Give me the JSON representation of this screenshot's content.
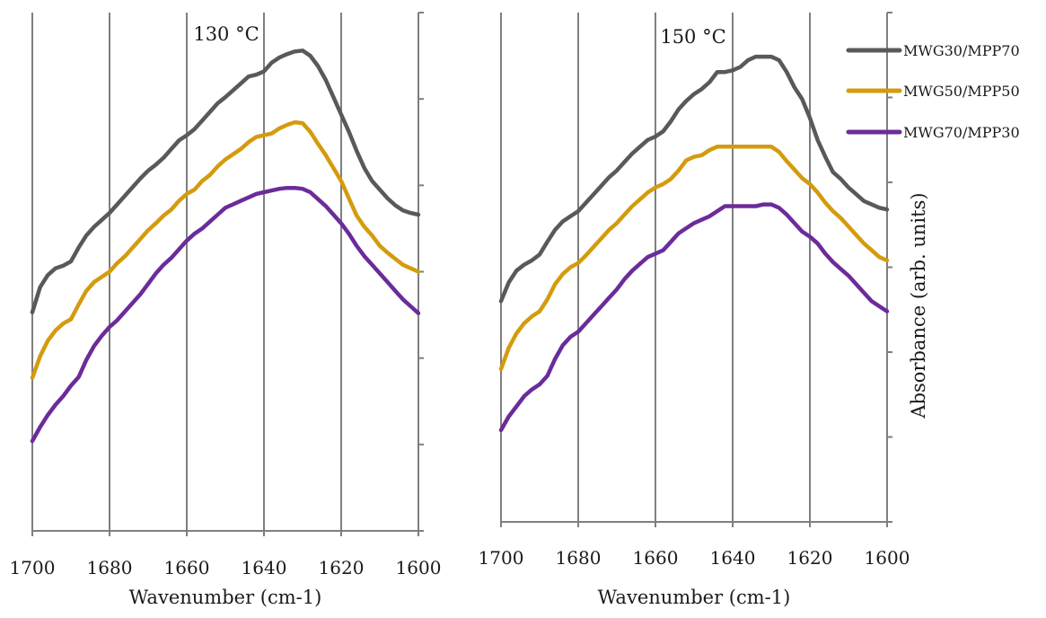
{
  "chart_data": [
    {
      "type": "line",
      "title": "130 °C",
      "xlabel": "Wavenumber (cm-1)",
      "ylabel": "",
      "x_reversed": true,
      "xlim": [
        1700,
        1600
      ],
      "xticks": [
        "1700",
        "1680",
        "1660",
        "1640",
        "1620",
        "1600"
      ],
      "ylim": [
        0,
        6
      ],
      "y_tick_labels": false,
      "grid": "vertical",
      "x": [
        1700,
        1698,
        1696,
        1694,
        1692,
        1690,
        1688,
        1686,
        1684,
        1682,
        1680,
        1678,
        1676,
        1674,
        1672,
        1670,
        1668,
        1666,
        1664,
        1662,
        1660,
        1658,
        1656,
        1654,
        1652,
        1650,
        1648,
        1646,
        1644,
        1642,
        1640,
        1638,
        1636,
        1634,
        1632,
        1630,
        1628,
        1626,
        1624,
        1622,
        1620,
        1618,
        1616,
        1614,
        1612,
        1610,
        1608,
        1606,
        1604,
        1602,
        1600
      ],
      "series": [
        {
          "name": "MWG30/MPP70",
          "color": "#595959",
          "values": [
            2.53,
            2.82,
            2.96,
            3.04,
            3.07,
            3.12,
            3.28,
            3.42,
            3.52,
            3.6,
            3.68,
            3.78,
            3.88,
            3.98,
            4.08,
            4.17,
            4.24,
            4.32,
            4.42,
            4.52,
            4.58,
            4.65,
            4.75,
            4.85,
            4.95,
            5.02,
            5.1,
            5.18,
            5.26,
            5.28,
            5.32,
            5.42,
            5.48,
            5.52,
            5.55,
            5.56,
            5.5,
            5.38,
            5.22,
            5.02,
            4.82,
            4.62,
            4.4,
            4.2,
            4.05,
            3.95,
            3.85,
            3.77,
            3.71,
            3.68,
            3.66
          ]
        },
        {
          "name": "MWG50/MPP50",
          "color": "#D49B0E",
          "values": [
            1.77,
            2.02,
            2.2,
            2.32,
            2.4,
            2.45,
            2.62,
            2.78,
            2.88,
            2.94,
            3.0,
            3.1,
            3.18,
            3.28,
            3.38,
            3.48,
            3.56,
            3.65,
            3.72,
            3.82,
            3.9,
            3.95,
            4.05,
            4.12,
            4.22,
            4.3,
            4.36,
            4.42,
            4.5,
            4.56,
            4.58,
            4.6,
            4.66,
            4.7,
            4.73,
            4.72,
            4.62,
            4.48,
            4.35,
            4.2,
            4.05,
            3.85,
            3.65,
            3.52,
            3.42,
            3.3,
            3.22,
            3.15,
            3.08,
            3.04,
            3.0
          ]
        },
        {
          "name": "MWG70/MPP30",
          "color": "#6B2C9A",
          "values": [
            1.04,
            1.2,
            1.34,
            1.46,
            1.56,
            1.68,
            1.78,
            1.98,
            2.14,
            2.26,
            2.36,
            2.44,
            2.54,
            2.64,
            2.74,
            2.86,
            2.98,
            3.08,
            3.16,
            3.26,
            3.36,
            3.44,
            3.5,
            3.58,
            3.66,
            3.74,
            3.78,
            3.82,
            3.86,
            3.9,
            3.92,
            3.94,
            3.96,
            3.97,
            3.97,
            3.96,
            3.92,
            3.84,
            3.76,
            3.66,
            3.56,
            3.44,
            3.3,
            3.18,
            3.08,
            2.98,
            2.88,
            2.78,
            2.68,
            2.6,
            2.52
          ]
        }
      ]
    },
    {
      "type": "line",
      "title": "150 °C",
      "xlabel": "Wavenumber (cm-1)",
      "ylabel": "Absorbance (arb. units)",
      "x_reversed": true,
      "xlim": [
        1700,
        1600
      ],
      "xticks": [
        "1700",
        "1680",
        "1660",
        "1640",
        "1620",
        "1600"
      ],
      "ylim": [
        0,
        6
      ],
      "y_tick_labels": false,
      "grid": "vertical",
      "x": [
        1700,
        1698,
        1696,
        1694,
        1692,
        1690,
        1688,
        1686,
        1684,
        1682,
        1680,
        1678,
        1676,
        1674,
        1672,
        1670,
        1668,
        1666,
        1664,
        1662,
        1660,
        1658,
        1656,
        1654,
        1652,
        1650,
        1648,
        1646,
        1644,
        1642,
        1640,
        1638,
        1636,
        1634,
        1632,
        1630,
        1628,
        1626,
        1624,
        1622,
        1620,
        1618,
        1616,
        1614,
        1612,
        1610,
        1608,
        1606,
        1604,
        1602,
        1600
      ],
      "series": [
        {
          "name": "MWG30/MPP70",
          "color": "#595959",
          "values": [
            2.6,
            2.82,
            2.96,
            3.03,
            3.08,
            3.15,
            3.3,
            3.44,
            3.54,
            3.6,
            3.66,
            3.76,
            3.86,
            3.96,
            4.06,
            4.14,
            4.24,
            4.34,
            4.42,
            4.5,
            4.54,
            4.6,
            4.72,
            4.86,
            4.96,
            5.04,
            5.1,
            5.18,
            5.3,
            5.3,
            5.32,
            5.36,
            5.44,
            5.48,
            5.48,
            5.48,
            5.44,
            5.3,
            5.12,
            4.98,
            4.76,
            4.5,
            4.3,
            4.12,
            4.04,
            3.94,
            3.86,
            3.78,
            3.74,
            3.7,
            3.68
          ]
        },
        {
          "name": "MWG50/MPP50",
          "color": "#D49B0E",
          "values": [
            1.8,
            2.05,
            2.22,
            2.34,
            2.42,
            2.48,
            2.62,
            2.8,
            2.92,
            3.0,
            3.05,
            3.14,
            3.24,
            3.34,
            3.44,
            3.52,
            3.62,
            3.72,
            3.8,
            3.88,
            3.94,
            3.98,
            4.04,
            4.14,
            4.26,
            4.3,
            4.32,
            4.38,
            4.42,
            4.42,
            4.42,
            4.42,
            4.42,
            4.42,
            4.42,
            4.42,
            4.36,
            4.25,
            4.15,
            4.05,
            3.98,
            3.88,
            3.76,
            3.66,
            3.58,
            3.48,
            3.38,
            3.28,
            3.2,
            3.12,
            3.08
          ]
        },
        {
          "name": "MWG70/MPP30",
          "color": "#6B2C9A",
          "values": [
            1.08,
            1.24,
            1.36,
            1.48,
            1.56,
            1.62,
            1.72,
            1.92,
            2.08,
            2.18,
            2.24,
            2.34,
            2.44,
            2.54,
            2.64,
            2.74,
            2.86,
            2.96,
            3.04,
            3.12,
            3.16,
            3.2,
            3.3,
            3.4,
            3.46,
            3.52,
            3.56,
            3.6,
            3.66,
            3.72,
            3.72,
            3.72,
            3.72,
            3.72,
            3.74,
            3.74,
            3.7,
            3.62,
            3.52,
            3.42,
            3.36,
            3.28,
            3.16,
            3.06,
            2.98,
            2.9,
            2.8,
            2.7,
            2.6,
            2.54,
            2.48
          ]
        }
      ]
    }
  ],
  "legend": {
    "placement": "top-right",
    "items": [
      {
        "label": "MWG30/MPP70",
        "color": "#595959"
      },
      {
        "label": "MWG50/MPP50",
        "color": "#D49B0E"
      },
      {
        "label": "MWG70/MPP30",
        "color": "#6B2C9A"
      }
    ]
  }
}
